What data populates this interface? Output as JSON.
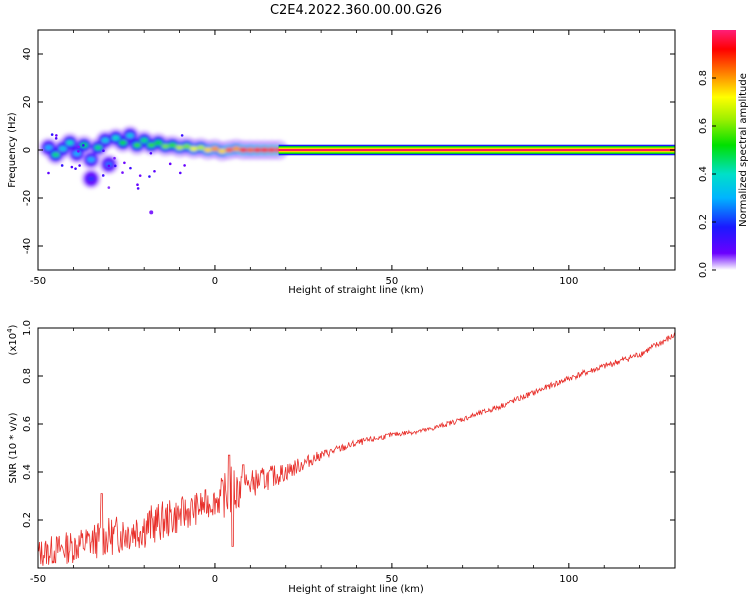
{
  "figure_title": "C2E4.2022.360.00.00.G26",
  "chart_data": [
    {
      "type": "heatmap",
      "title": "",
      "xlabel": "Height of straight line (km)",
      "ylabel": "Frequency (Hz)",
      "xlim": [
        -50,
        130
      ],
      "ylim": [
        -50,
        50
      ],
      "x_ticks": [
        -50,
        0,
        50,
        100
      ],
      "y_ticks": [
        -40,
        -20,
        0,
        20,
        40
      ],
      "x_tick_labels": [
        "-50",
        "0",
        "50",
        "100"
      ],
      "y_tick_labels": [
        "-40",
        "-20",
        "0",
        "20",
        "40"
      ],
      "colorbar": {
        "label": "Normalized spectral amplitude",
        "range": [
          0,
          1
        ],
        "ticks": [
          0.0,
          0.2,
          0.4,
          0.6,
          0.8
        ],
        "tick_labels": [
          "0.0",
          "0.2",
          "0.4",
          "0.6",
          "0.8"
        ]
      },
      "description_points": [
        {
          "x": -47,
          "f": 1.0,
          "amp": 0.3
        },
        {
          "x": -45,
          "f": -2.0,
          "amp": 0.45
        },
        {
          "x": -43,
          "f": 0.5,
          "amp": 0.35
        },
        {
          "x": -41,
          "f": 3.0,
          "amp": 0.4
        },
        {
          "x": -39,
          "f": -1.5,
          "amp": 0.3
        },
        {
          "x": -37,
          "f": 2.0,
          "amp": 0.5
        },
        {
          "x": -35,
          "f": -4.0,
          "amp": 0.3
        },
        {
          "x": -35,
          "f": -12.0,
          "amp": 0.2
        },
        {
          "x": -33,
          "f": 1.0,
          "amp": 0.45
        },
        {
          "x": -31,
          "f": 4.0,
          "amp": 0.35
        },
        {
          "x": -30,
          "f": -6.0,
          "amp": 0.25
        },
        {
          "x": -28,
          "f": 5.0,
          "amp": 0.4
        },
        {
          "x": -26,
          "f": 3.0,
          "amp": 0.5
        },
        {
          "x": -24,
          "f": 6.0,
          "amp": 0.35
        },
        {
          "x": -22,
          "f": 2.0,
          "amp": 0.55
        },
        {
          "x": -20,
          "f": 4.0,
          "amp": 0.45
        },
        {
          "x": -18,
          "f": 2.0,
          "amp": 0.55
        },
        {
          "x": -16,
          "f": 3.0,
          "amp": 0.5
        },
        {
          "x": -14,
          "f": 1.5,
          "amp": 0.6
        },
        {
          "x": -12,
          "f": 2.0,
          "amp": 0.55
        },
        {
          "x": -10,
          "f": 1.0,
          "amp": 0.65
        },
        {
          "x": -8,
          "f": 1.5,
          "amp": 0.6
        },
        {
          "x": -6,
          "f": 0.5,
          "amp": 0.7
        },
        {
          "x": -4,
          "f": 1.0,
          "amp": 0.65
        },
        {
          "x": -2,
          "f": 0.0,
          "amp": 0.75
        },
        {
          "x": 0,
          "f": 0.5,
          "amp": 0.8
        },
        {
          "x": 2,
          "f": -0.5,
          "amp": 0.75
        },
        {
          "x": 4,
          "f": 0.0,
          "amp": 0.85
        },
        {
          "x": 6,
          "f": 0.5,
          "amp": 0.8
        },
        {
          "x": 8,
          "f": 0.0,
          "amp": 0.9
        },
        {
          "x": 10,
          "f": 0.0,
          "amp": 0.85
        },
        {
          "x": 12,
          "f": 0.0,
          "amp": 0.9
        },
        {
          "x": 14,
          "f": 0.0,
          "amp": 0.92
        },
        {
          "x": 16,
          "f": 0.0,
          "amp": 0.95
        },
        {
          "x": 18,
          "f": 0.0,
          "amp": 0.97
        }
      ],
      "ridge": {
        "x_start": 18,
        "x_end": 130,
        "f": 0.0,
        "amp": 1.0
      }
    },
    {
      "type": "line",
      "title": "",
      "xlabel": "Height of straight line (km)",
      "ylabel": "SNR (10 * v/v)",
      "y_multiplier": "(x10",
      "y_multiplier_exp": "4",
      "xlim": [
        -50,
        130
      ],
      "ylim": [
        0,
        1.0
      ],
      "x_ticks": [
        -50,
        0,
        50,
        100
      ],
      "y_ticks": [
        0.2,
        0.4,
        0.6,
        0.8,
        1.0
      ],
      "x_tick_labels": [
        "-50",
        "0",
        "50",
        "100"
      ],
      "y_tick_labels": [
        "0.2",
        "0.4",
        "0.6",
        "0.8",
        "1.0"
      ],
      "color": "#e8302b",
      "trend": {
        "x": [
          -50,
          -40,
          -30,
          -20,
          -10,
          0,
          5,
          10,
          20,
          30,
          40,
          50,
          60,
          70,
          80,
          90,
          100,
          110,
          120,
          130
        ],
        "y": [
          0.06,
          0.09,
          0.13,
          0.17,
          0.22,
          0.28,
          0.32,
          0.35,
          0.4,
          0.47,
          0.52,
          0.555,
          0.575,
          0.62,
          0.67,
          0.73,
          0.79,
          0.84,
          0.89,
          0.97
        ]
      },
      "noise_amplitude": {
        "x": [
          -50,
          -30,
          -20,
          0,
          5,
          10,
          20,
          30,
          50,
          130
        ],
        "y": [
          0.06,
          0.08,
          0.09,
          0.06,
          0.12,
          0.06,
          0.04,
          0.02,
          0.01,
          0.015
        ]
      },
      "spikes": [
        {
          "x": -32,
          "y": 0.31
        },
        {
          "x": 4,
          "y": 0.47
        },
        {
          "x": 8,
          "y": 0.43
        },
        {
          "x": 5,
          "y": 0.09
        }
      ]
    }
  ]
}
